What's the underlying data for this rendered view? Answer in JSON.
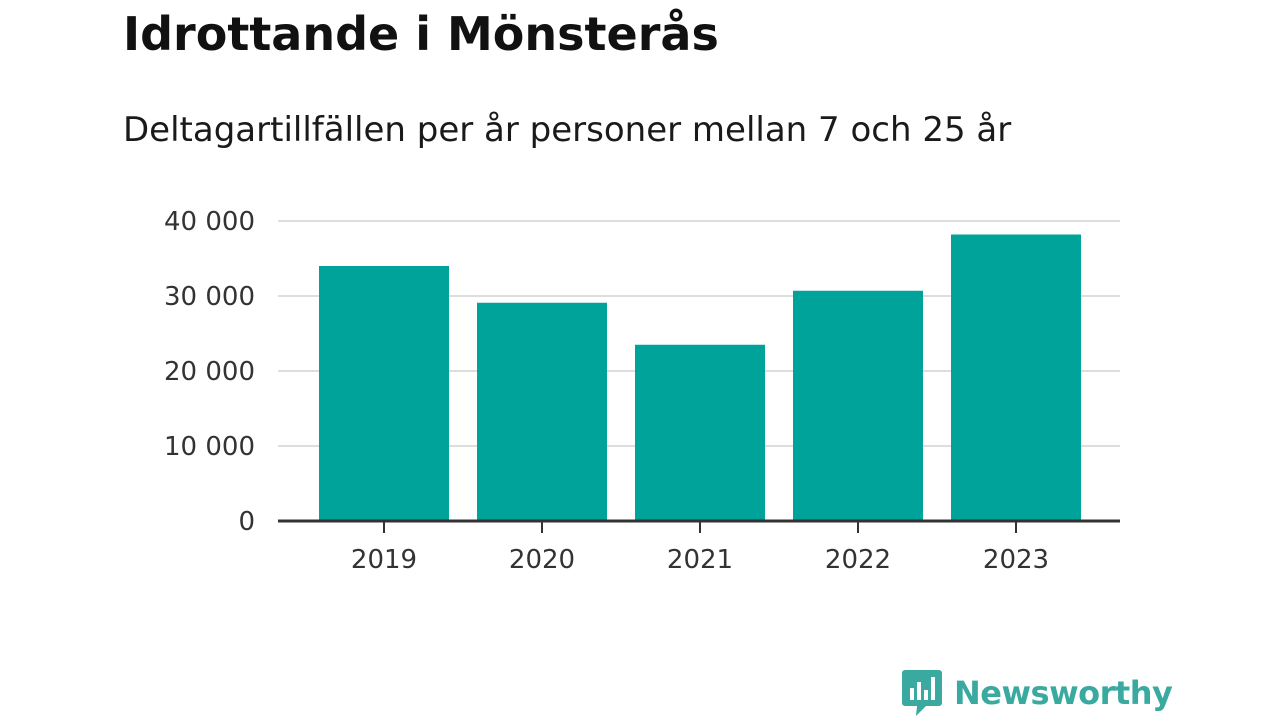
{
  "title": "Idrottande i Mönsterås",
  "subtitle": "Deltagartillfällen per år personer mellan 7 och 25 år",
  "colors": {
    "bar": "#00a39a",
    "grid": "#dddddd",
    "axis": "#333333",
    "brand": "#3aa9a0"
  },
  "logo": {
    "icon": "newsworthy-logo-icon",
    "text": "Newsworthy"
  },
  "chart_data": {
    "type": "bar",
    "categories": [
      "2019",
      "2020",
      "2021",
      "2022",
      "2023"
    ],
    "values": [
      34000,
      29100,
      23500,
      30700,
      38200
    ],
    "title": "Idrottande i Mönsterås",
    "subtitle": "Deltagartillfällen per år personer mellan 7 och 25 år",
    "xlabel": "",
    "ylabel": "",
    "ylim": [
      0,
      40000
    ],
    "yticks": [
      0,
      10000,
      20000,
      30000,
      40000
    ],
    "ytick_labels": [
      "0",
      "10 000",
      "20 000",
      "30 000",
      "40 000"
    ],
    "grid": true,
    "legend": "none"
  }
}
